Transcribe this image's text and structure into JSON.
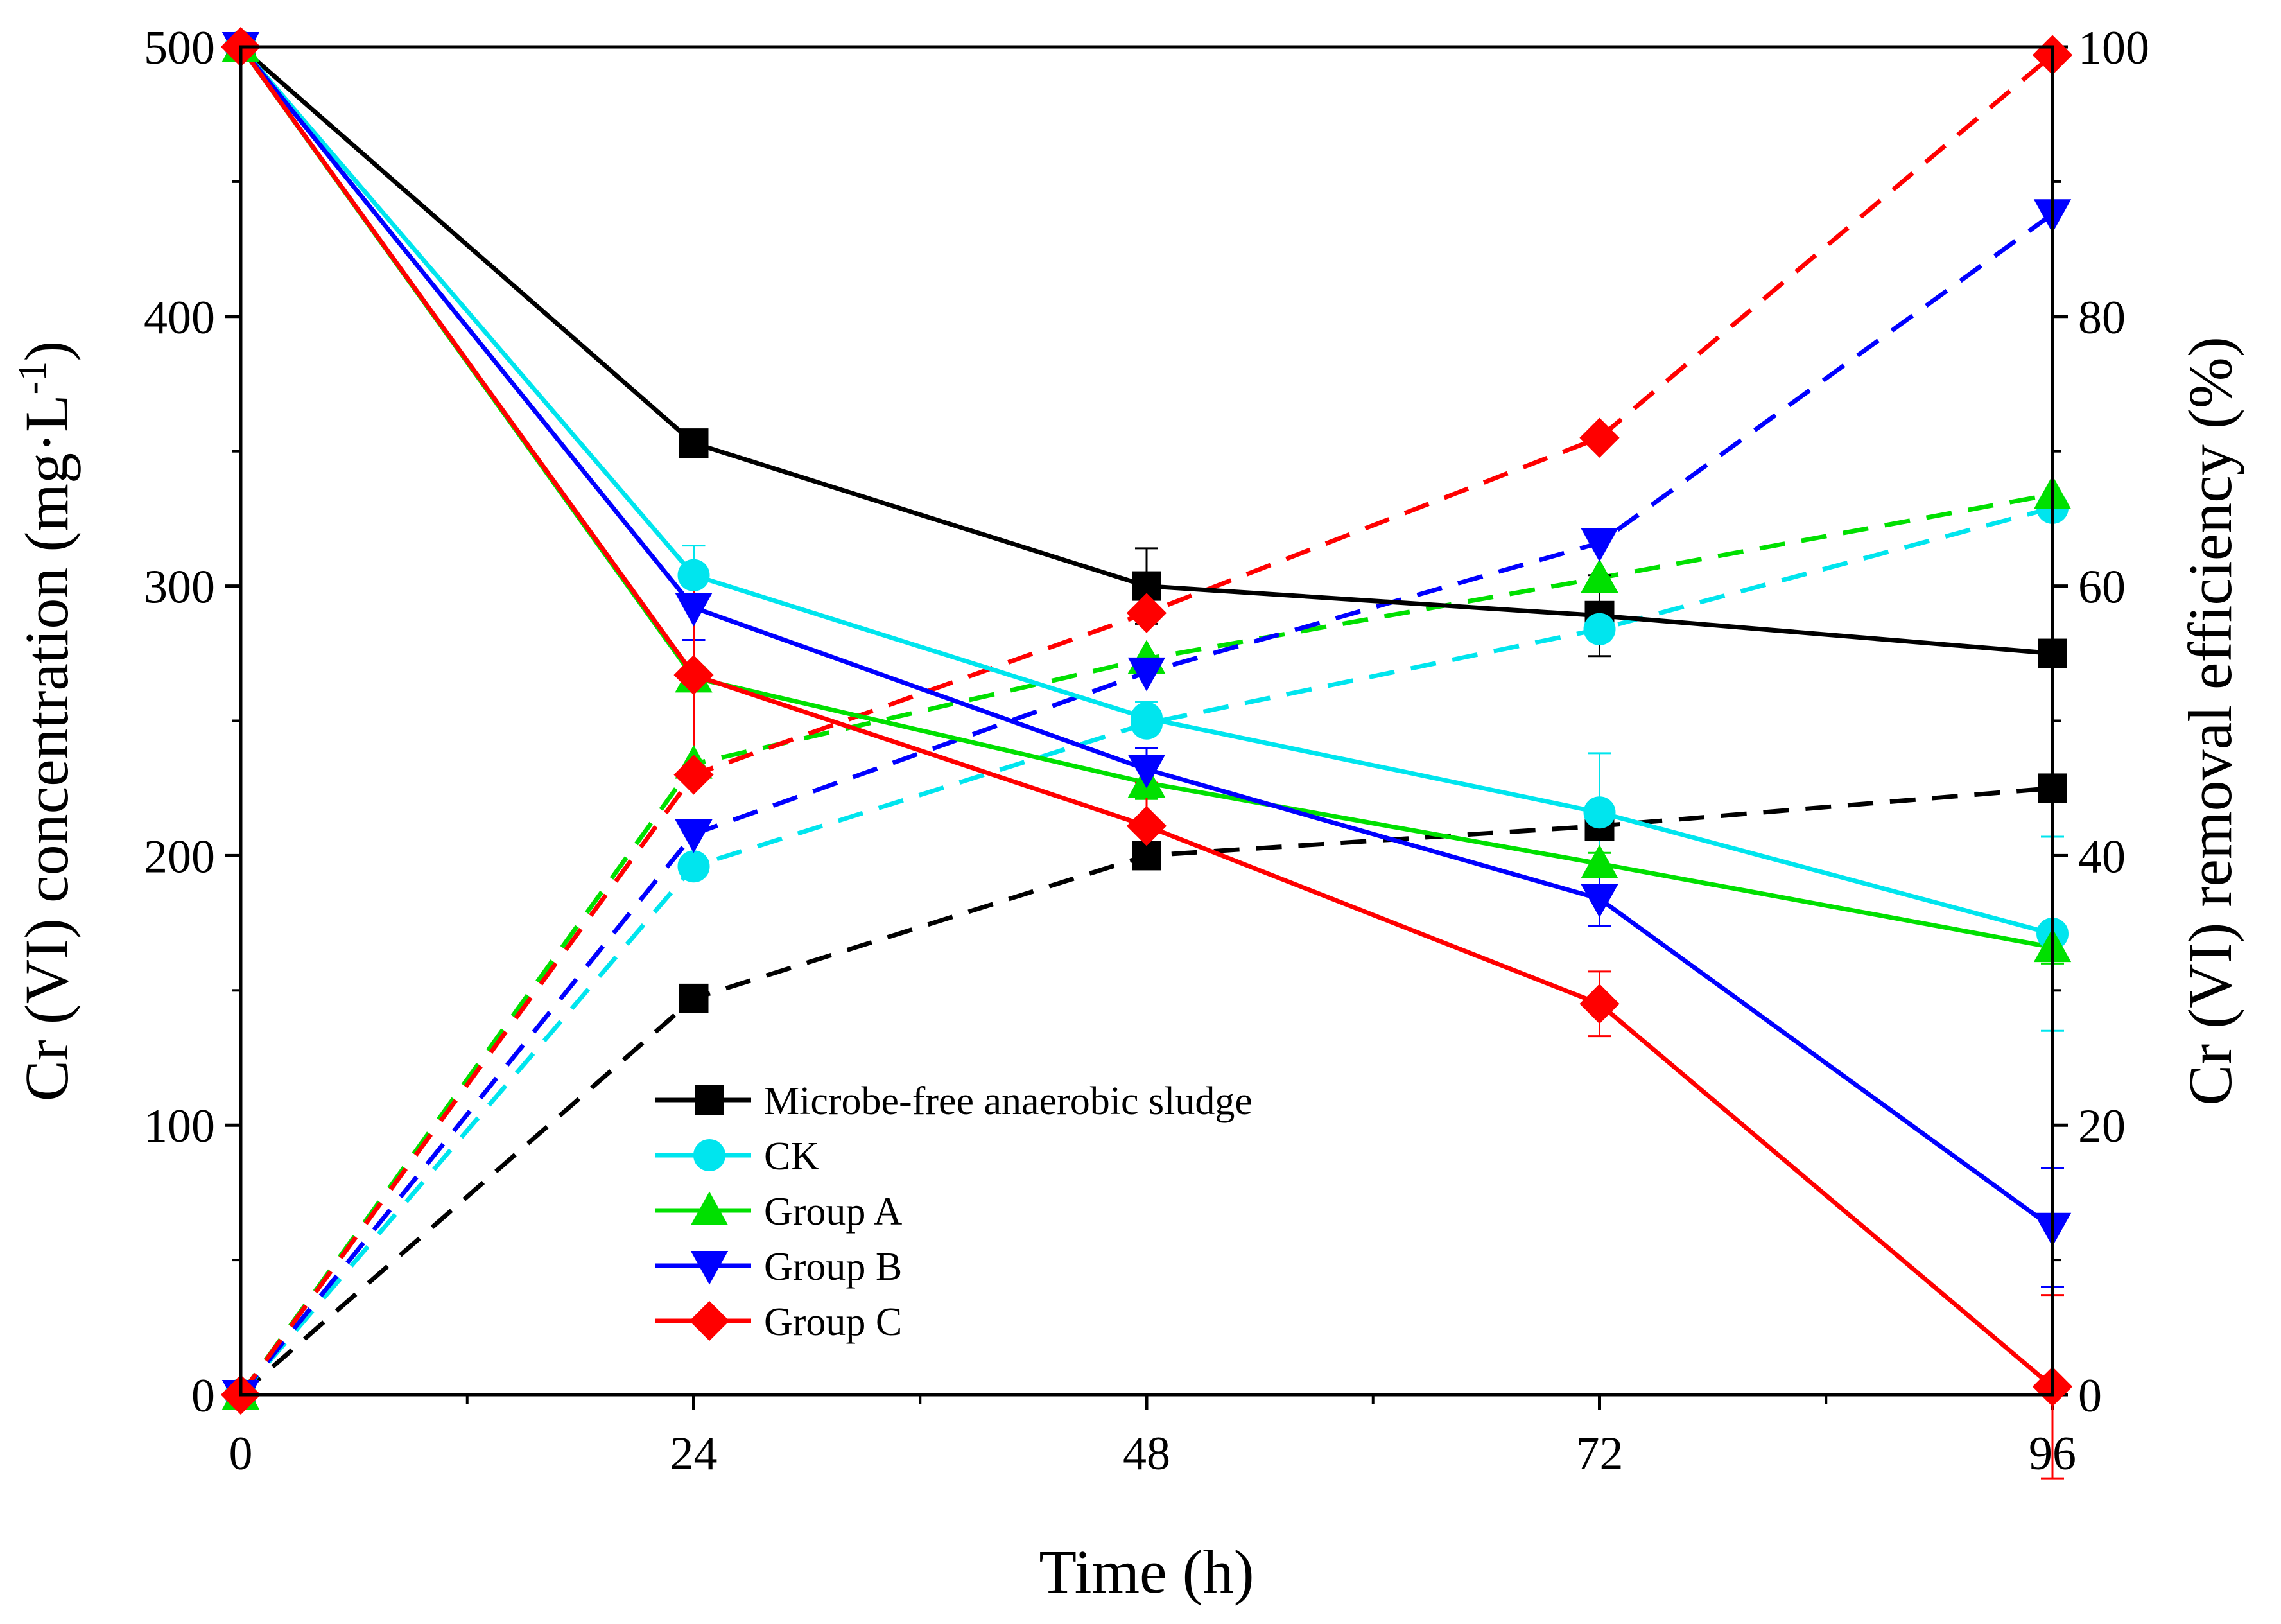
{
  "chart_data": {
    "type": "line",
    "title": "",
    "xlabel": "Time (h)",
    "ylabel_left_main": "Cr (VI) concentration (mg·L",
    "ylabel_left_sup": "-1",
    "ylabel_left_tail": ")",
    "ylabel_right": "Cr (VI) removal efficiency (%)",
    "x_ticks": [
      "0",
      "24",
      "48",
      "72",
      "96"
    ],
    "x_values": [
      0,
      24,
      48,
      72,
      96
    ],
    "xlim": [
      0,
      96
    ],
    "ylim_left": [
      0,
      500
    ],
    "ylim_right": [
      0,
      100
    ],
    "y_ticks_left": [
      "0",
      "100",
      "200",
      "300",
      "400",
      "500"
    ],
    "y_ticks_right": [
      "0",
      "20",
      "40",
      "60",
      "80",
      "100"
    ],
    "legend_position": "lower-left",
    "series": [
      {
        "name": "Microbe-free anaerobic sludge",
        "color": "#000000",
        "marker": "square",
        "concentration": [
          500,
          353,
          300,
          289,
          275
        ],
        "concentration_err": [
          0,
          4,
          14,
          15,
          4
        ],
        "removal": [
          0,
          29.4,
          40,
          42.2,
          45
        ]
      },
      {
        "name": "CK",
        "color": "#00e5ee",
        "marker": "circle",
        "concentration": [
          500,
          304,
          251,
          216,
          171
        ],
        "concentration_err": [
          0,
          11,
          6,
          22,
          36
        ],
        "removal": [
          0,
          39.2,
          49.8,
          56.8,
          65.8
        ]
      },
      {
        "name": "Group A",
        "color": "#00e000",
        "marker": "triangle-up",
        "concentration": [
          500,
          266,
          227,
          197,
          166
        ],
        "concentration_err": [
          0,
          4,
          6,
          4,
          6
        ],
        "removal": [
          0,
          46.8,
          54.6,
          60.6,
          66.8
        ]
      },
      {
        "name": "Group B",
        "color": "#0000ff",
        "marker": "triangle-down",
        "concentration": [
          500,
          292,
          232,
          184,
          62
        ],
        "concentration_err": [
          0,
          12,
          8,
          10,
          22
        ],
        "removal": [
          0,
          41.6,
          53.6,
          63.2,
          87.6
        ]
      },
      {
        "name": "Group C",
        "color": "#ff0000",
        "marker": "diamond",
        "concentration": [
          500,
          267,
          211,
          145,
          3
        ],
        "concentration_err": [
          0,
          35,
          16,
          12,
          34
        ],
        "removal": [
          0,
          46,
          58,
          71,
          99.4
        ]
      }
    ]
  }
}
